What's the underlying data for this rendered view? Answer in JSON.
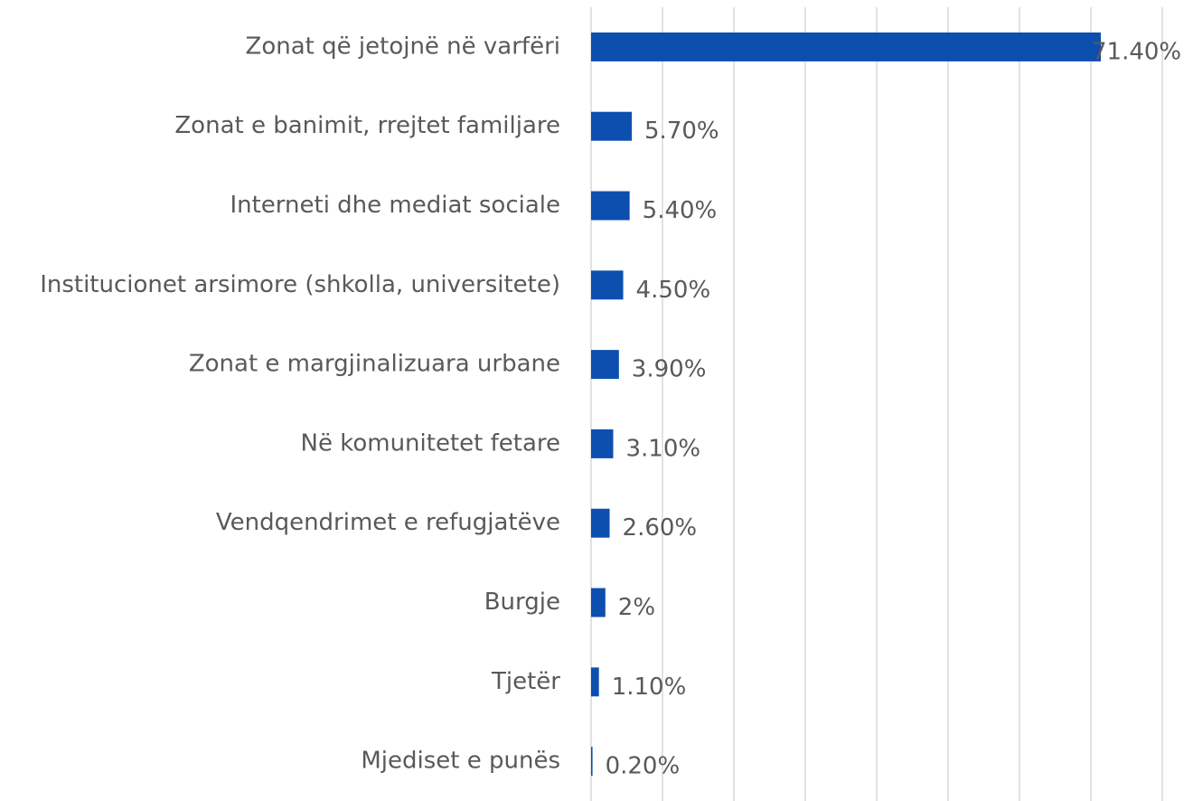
{
  "chart_data": {
    "type": "barh",
    "categories": [
      "Zonat që jetojnë në varfëri",
      "Zonat e banimit, rrejtet familjare",
      "Interneti dhe mediat sociale",
      "Institucionet arsimore (shkolla, universitete)",
      "Zonat e margjinalizuara urbane",
      "Në komunitetet fetare",
      "Vendqendrimet e refugjatëve",
      "Burgje",
      "Tjetër",
      "Mjediset e punës"
    ],
    "values": [
      71.4,
      5.7,
      5.4,
      4.5,
      3.9,
      3.1,
      2.6,
      2,
      1.1,
      0.2
    ],
    "value_labels": [
      "71.40%",
      "5.70%",
      "5.40%",
      "4.50%",
      "3.90%",
      "3.10%",
      "2.60%",
      "2%",
      "1.10%",
      "0.20%"
    ],
    "color": "#0d4faf",
    "xlim": [
      0,
      80
    ],
    "xticks": [
      0,
      10,
      20,
      30,
      40,
      50,
      60,
      70,
      80
    ],
    "grid": true
  }
}
